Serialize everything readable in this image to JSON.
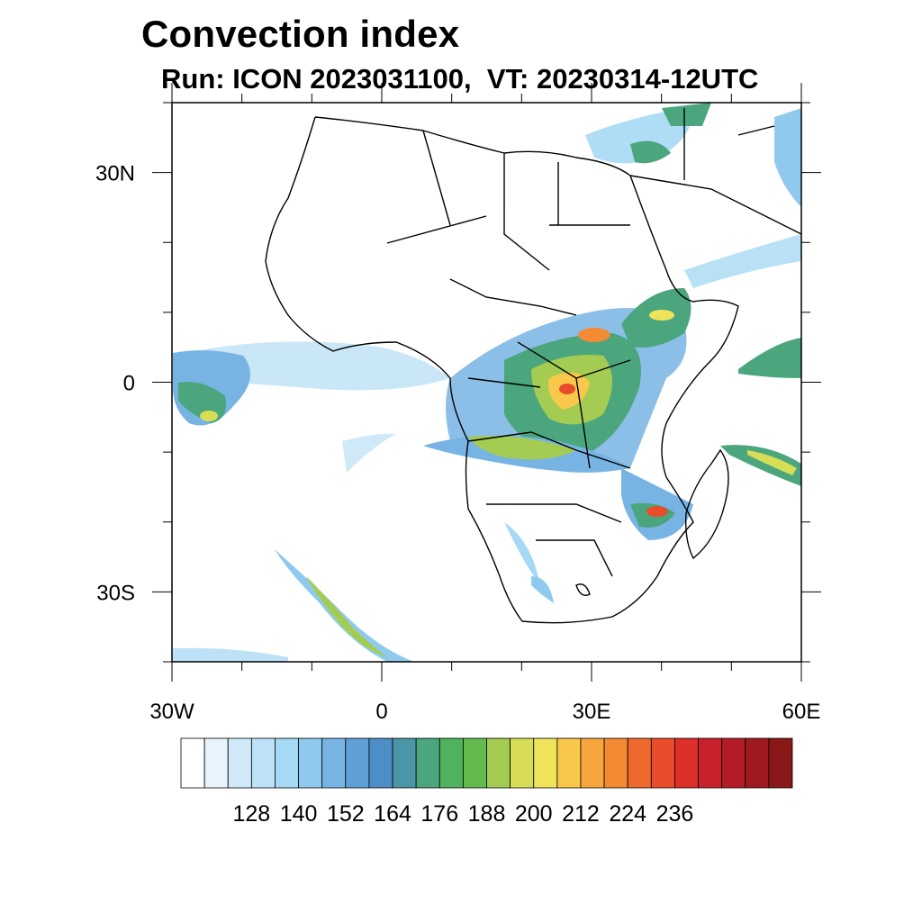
{
  "title": "Convection index",
  "subtitle": "Run: ICON 2023031100,  VT: 20230314-12UTC",
  "map": {
    "lon_range": [
      -30,
      60
    ],
    "lat_range": [
      -40,
      40
    ],
    "x_ticks": [
      {
        "lon": -30,
        "label": "30W"
      },
      {
        "lon": 0,
        "label": "0"
      },
      {
        "lon": 30,
        "label": "30E"
      },
      {
        "lon": 60,
        "label": "60E"
      }
    ],
    "y_ticks": [
      {
        "lat": 30,
        "label": "30N"
      },
      {
        "lat": 0,
        "label": "0"
      },
      {
        "lat": -30,
        "label": "30S"
      }
    ]
  },
  "colorbar": {
    "colors": [
      "#ffffff",
      "#e8f4fc",
      "#d0e9f8",
      "#bde1f6",
      "#a6d9f4",
      "#8fcaee",
      "#78b4e3",
      "#5f9fd8",
      "#4d8ec6",
      "#4a96a6",
      "#4ba67e",
      "#4fb25c",
      "#62bb4c",
      "#a4cc52",
      "#d7de56",
      "#f0e35c",
      "#f9c84a",
      "#f7a63e",
      "#f38a34",
      "#ee6a2c",
      "#e84c2a",
      "#dc2e2a",
      "#c8212c",
      "#b31c26",
      "#9e1a20",
      "#8a1818"
    ],
    "labels": [
      "128",
      "140",
      "152",
      "164",
      "176",
      "188",
      "200",
      "212",
      "224",
      "236"
    ]
  }
}
